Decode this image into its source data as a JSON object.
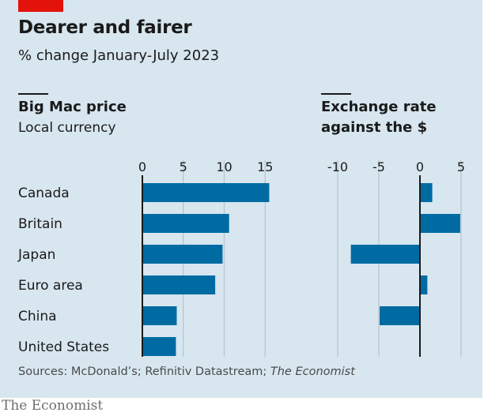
{
  "header": {
    "title": "Dearer and fairer",
    "subtitle": "% change January-July 2023"
  },
  "footer": {
    "source_prefix": "Sources: McDonald’s; Refinitiv Datastream; ",
    "source_italic": "The Economist",
    "brand": "The Economist"
  },
  "colors": {
    "background": "#d7e6ef",
    "bar": "#006ba2",
    "accent": "#e3120b",
    "grid": "#b7c6cf",
    "axis": "#1a1a1a"
  },
  "chart_data": [
    {
      "type": "bar",
      "orientation": "horizontal",
      "title": "Big Mac price",
      "subtitle": "Local currency",
      "categories": [
        "Canada",
        "Britain",
        "Japan",
        "Euro area",
        "China",
        "United States"
      ],
      "values": [
        15.5,
        10.6,
        9.8,
        8.9,
        4.2,
        4.1
      ],
      "xlim": [
        0,
        17
      ],
      "ticks": [
        0,
        5,
        10,
        15
      ],
      "tick_labels": [
        "0",
        "5",
        "10",
        "15"
      ],
      "grid": true
    },
    {
      "type": "bar",
      "orientation": "horizontal",
      "title": "Exchange rate against the $",
      "title_lines": [
        "Exchange rate",
        "against the $"
      ],
      "categories": [
        "Canada",
        "Britain",
        "Japan",
        "Euro area",
        "China",
        "United States"
      ],
      "values": [
        1.5,
        4.9,
        -8.4,
        0.9,
        -4.9,
        0
      ],
      "xlim": [
        -10,
        5
      ],
      "ticks": [
        -10,
        -5,
        0,
        5
      ],
      "tick_labels": [
        "-10",
        "-5",
        "0",
        "5"
      ],
      "grid": true
    }
  ]
}
